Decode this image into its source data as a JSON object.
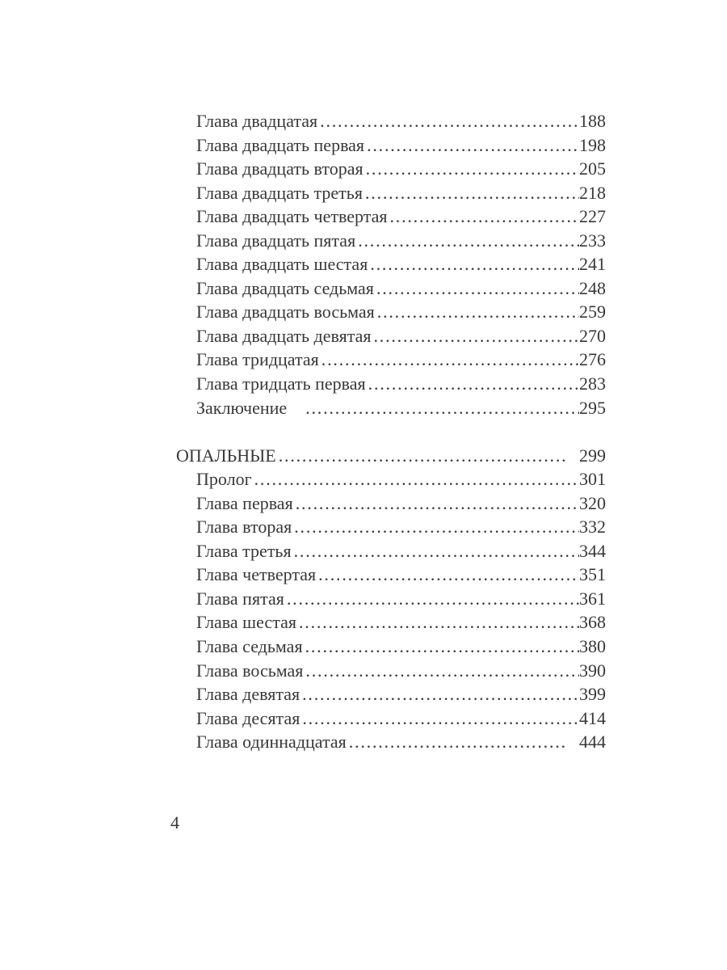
{
  "toc": {
    "sections": [
      {
        "entries": [
          {
            "label": "Глава двадцатая",
            "page": "188"
          },
          {
            "label": "Глава двадцать первая",
            "page": "198"
          },
          {
            "label": "Глава двадцать вторая",
            "page": "205"
          },
          {
            "label": "Глава двадцать третья",
            "page": "218"
          },
          {
            "label": "Глава двадцать четвертая",
            "page": "227"
          },
          {
            "label": "Глава двадцать пятая",
            "page": "233"
          },
          {
            "label": "Глава двадцать шестая",
            "page": "241"
          },
          {
            "label": "Глава двадцать седьмая",
            "page": "248"
          },
          {
            "label": "Глава двадцать восьмая",
            "page": "259"
          },
          {
            "label": "Глава двадцать девятая",
            "page": "270"
          },
          {
            "label": "Глава тридцатая",
            "page": "276"
          },
          {
            "label": "Глава тридцать первая",
            "page": "283"
          },
          {
            "label": "Заключение",
            "page": "295",
            "gap_after_label": true
          }
        ]
      },
      {
        "header": {
          "label": "ОПАЛЬНЫЕ",
          "page": "299",
          "gap_before_page": true
        },
        "entries": [
          {
            "label": "Пролог",
            "page": "301"
          },
          {
            "label": "Глава первая",
            "page": "320"
          },
          {
            "label": "Глава вторая",
            "page": "332"
          },
          {
            "label": "Глава третья",
            "page": "344"
          },
          {
            "label": "Глава четвертая",
            "page": "351"
          },
          {
            "label": "Глава пятая",
            "page": "361"
          },
          {
            "label": "Глава шестая",
            "page": "368"
          },
          {
            "label": "Глава седьмая",
            "page": "380"
          },
          {
            "label": "Глава восьмая",
            "page": "390"
          },
          {
            "label": "Глава девятая",
            "page": "399"
          },
          {
            "label": "Глава десятая",
            "page": "414"
          },
          {
            "label": "Глава одиннадцатая",
            "page": "444",
            "gap_before_page": true
          }
        ]
      }
    ]
  },
  "footer": {
    "page_number": "4"
  }
}
